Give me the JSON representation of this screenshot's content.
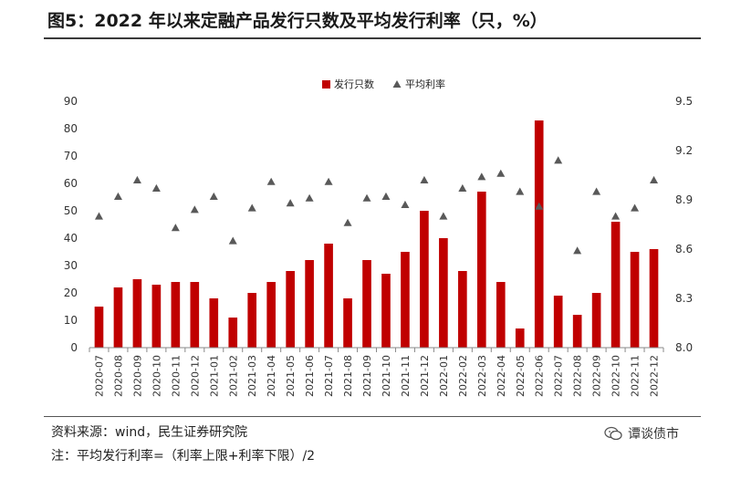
{
  "figure": {
    "title": "图5：2022 年以来定融产品发行只数及平均发行利率（只，%）",
    "source": "资料来源：wind，民生证券研究院",
    "note": "注：平均发行利率=（利率上限+利率下限）/2",
    "watermark": "谭谈债市",
    "watermark_icon": "wechat-icon"
  },
  "chart_data": {
    "type": "bar",
    "categories": [
      "2020-07",
      "2020-08",
      "2020-09",
      "2020-10",
      "2020-11",
      "2020-12",
      "2021-01",
      "2021-02",
      "2021-03",
      "2021-04",
      "2021-05",
      "2021-06",
      "2021-07",
      "2021-08",
      "2021-09",
      "2021-10",
      "2021-11",
      "2021-12",
      "2022-01",
      "2022-02",
      "2022-03",
      "2022-04",
      "2022-05",
      "2022-06",
      "2022-07",
      "2022-08",
      "2022-09",
      "2022-10",
      "2022-11",
      "2022-12"
    ],
    "series": [
      {
        "name": "发行只数",
        "type": "bar",
        "axis": "left",
        "color": "#c00000",
        "values": [
          15,
          22,
          25,
          23,
          24,
          24,
          18,
          11,
          20,
          24,
          28,
          32,
          38,
          18,
          32,
          27,
          35,
          50,
          40,
          28,
          57,
          24,
          7,
          83,
          19,
          12,
          20,
          46,
          35,
          36
        ]
      },
      {
        "name": "平均利率",
        "type": "scatter",
        "marker": "triangle",
        "axis": "right",
        "color": "#595959",
        "values": [
          8.8,
          8.92,
          9.02,
          8.97,
          8.73,
          8.84,
          8.92,
          8.65,
          8.85,
          9.01,
          8.88,
          8.91,
          9.01,
          8.76,
          8.91,
          8.92,
          8.87,
          9.02,
          8.8,
          8.97,
          9.04,
          9.06,
          8.95,
          8.86,
          9.14,
          8.59,
          8.95,
          8.8,
          8.85,
          9.02
        ]
      }
    ],
    "y_left": {
      "min": 0,
      "max": 90,
      "ticks": [
        0,
        10,
        20,
        30,
        40,
        50,
        60,
        70,
        80,
        90
      ]
    },
    "y_right": {
      "min": 8.0,
      "max": 9.5,
      "ticks": [
        "8.0",
        "8.3",
        "8.6",
        "8.9",
        "9.2",
        "9.5"
      ]
    },
    "legend_position": "top-center",
    "grid": false
  }
}
